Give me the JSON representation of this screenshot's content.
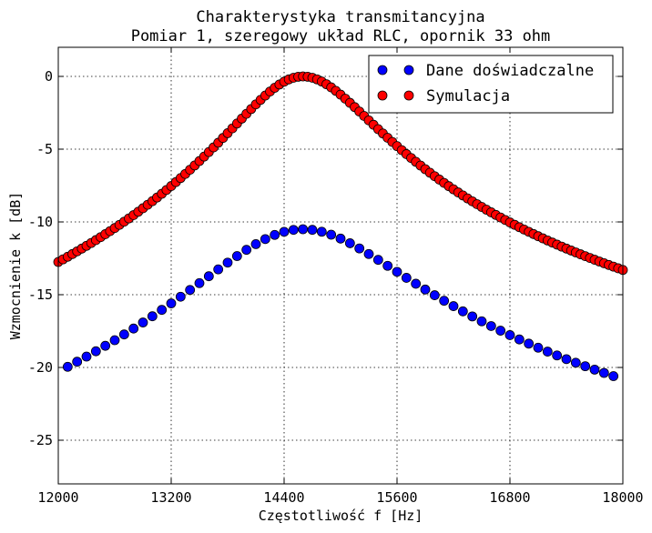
{
  "chart_data": {
    "type": "scatter",
    "title": "Charakterystyka transmitancyjna",
    "subtitle": "Pomiar 1, szeregowy układ RLC, opornik 33 ohm",
    "xlabel": "Częstotliwość f [Hz]",
    "ylabel": "Wzmocnienie k [dB]",
    "xlim": [
      12000,
      18000
    ],
    "ylim": [
      -28,
      2
    ],
    "xticks": [
      12000,
      13200,
      14400,
      15600,
      16800,
      18000
    ],
    "yticks": [
      0,
      -5,
      -10,
      -15,
      -20,
      -25
    ],
    "grid": true,
    "legend_position": "top-right",
    "series": [
      {
        "name": "Dane doświadczalne",
        "color": "#0000ff",
        "model": {
          "f0": 14600,
          "Q": 7.4,
          "peak_db": -10.5,
          "fmin": 12100,
          "fmax": 17900,
          "step": 100
        }
      },
      {
        "name": "Symulacja",
        "color": "#ff0000",
        "model": {
          "f0": 14600,
          "Q": 10.7,
          "peak_db": 0.0,
          "fmin": 12000,
          "fmax": 18000,
          "step": 50
        }
      }
    ]
  }
}
